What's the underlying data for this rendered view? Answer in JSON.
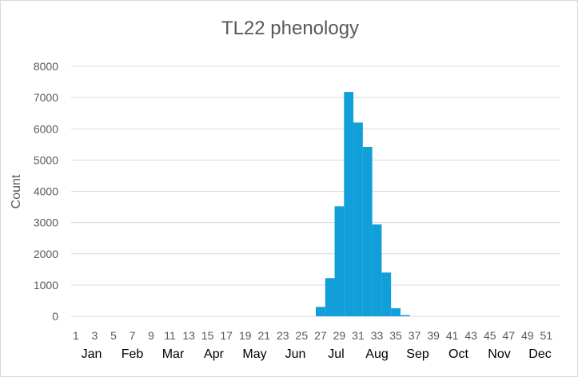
{
  "chart_data": {
    "type": "bar",
    "title": "TL22 phenology",
    "ylabel": "Count",
    "xlabel": "",
    "ylim": [
      0,
      8000
    ],
    "yticks": [
      0,
      1000,
      2000,
      3000,
      4000,
      5000,
      6000,
      7000,
      8000
    ],
    "grid": true,
    "legend": "none",
    "bar_color": "#119fd9",
    "gridline_color": "#d9d9d9",
    "week_tick_labels": [
      "1",
      "3",
      "5",
      "7",
      "9",
      "11",
      "13",
      "15",
      "17",
      "19",
      "21",
      "23",
      "25",
      "27",
      "29",
      "31",
      "33",
      "35",
      "37",
      "39",
      "41",
      "43",
      "45",
      "47",
      "49",
      "51"
    ],
    "month_labels": [
      "Jan",
      "Feb",
      "Mar",
      "Apr",
      "May",
      "Jun",
      "Jul",
      "Aug",
      "Sep",
      "Oct",
      "Nov",
      "Dec"
    ],
    "categories": [
      1,
      2,
      3,
      4,
      5,
      6,
      7,
      8,
      9,
      10,
      11,
      12,
      13,
      14,
      15,
      16,
      17,
      18,
      19,
      20,
      21,
      22,
      23,
      24,
      25,
      26,
      27,
      28,
      29,
      30,
      31,
      32,
      33,
      34,
      35,
      36,
      37,
      38,
      39,
      40,
      41,
      42,
      43,
      44,
      45,
      46,
      47,
      48,
      49,
      50,
      51,
      52
    ],
    "values": [
      0,
      0,
      0,
      0,
      0,
      0,
      0,
      0,
      0,
      0,
      0,
      0,
      0,
      0,
      0,
      0,
      0,
      0,
      0,
      0,
      0,
      0,
      0,
      0,
      0,
      0,
      300,
      1220,
      3520,
      7180,
      6200,
      5420,
      2940,
      1400,
      260,
      40,
      0,
      0,
      0,
      0,
      0,
      0,
      0,
      0,
      0,
      0,
      0,
      0,
      0,
      0,
      0,
      0
    ]
  }
}
